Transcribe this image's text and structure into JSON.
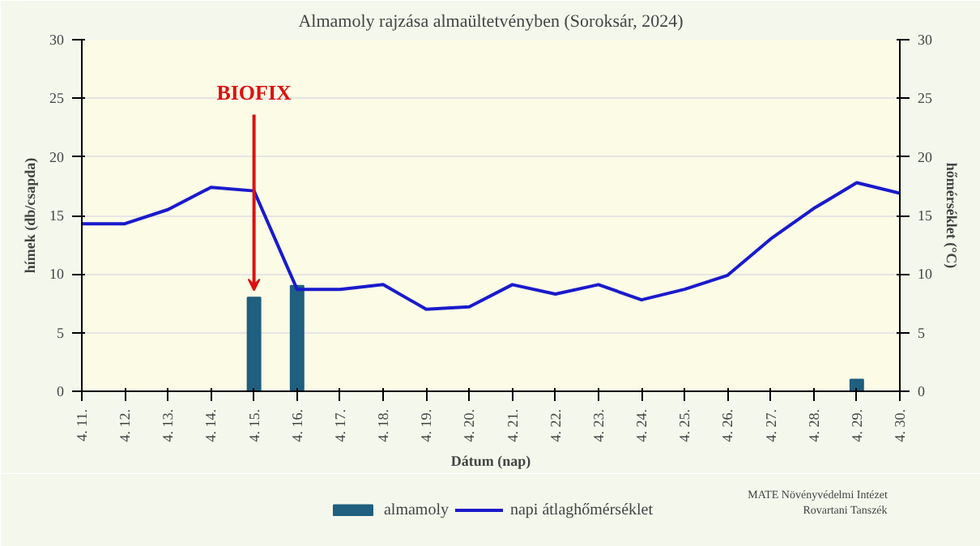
{
  "chart_data": {
    "type": "bar",
    "title": "Almamoly rajzása almaültetvényben (Soroksár, 2024)",
    "xlabel": "Dátum (nap)",
    "ylabel": "hímek (db/csapda)",
    "y2label": "hőmérséklet (°C)",
    "categories": [
      "4. 11.",
      "4. 12.",
      "4. 13.",
      "4. 14.",
      "4. 15.",
      "4. 16.",
      "4. 17.",
      "4. 18.",
      "4. 19.",
      "4. 20.",
      "4. 21.",
      "4. 22.",
      "4. 23.",
      "4. 24.",
      "4. 25.",
      "4. 26.",
      "4. 27.",
      "4. 28.",
      "4. 29.",
      "4. 30."
    ],
    "series": [
      {
        "name": "almamoly",
        "color": "#1f5f7f",
        "values": [
          0,
          0,
          0,
          0,
          8,
          9,
          0,
          0,
          0,
          0,
          0,
          0,
          0,
          0,
          0,
          0,
          0,
          0,
          1,
          0
        ]
      },
      {
        "name": "napi átlaghőmérséklet",
        "type": "line",
        "axis": "y2",
        "color": "#1a1acc",
        "values": [
          14.3,
          14.3,
          15.5,
          17.4,
          17.1,
          8.7,
          8.7,
          9.1,
          7.0,
          7.2,
          9.1,
          8.3,
          9.1,
          7.8,
          8.7,
          9.9,
          13.0,
          15.6,
          17.8,
          16.9
        ]
      }
    ],
    "ylim": [
      0,
      30
    ],
    "yticks": [
      0,
      5,
      10,
      15,
      20,
      25,
      30
    ],
    "y2lim": [
      0,
      30
    ],
    "y2ticks": [
      0,
      5,
      10,
      15,
      20,
      25,
      30
    ],
    "grid": "y",
    "legend": "bottom",
    "marker": "none",
    "line_style": "solid",
    "annotations": [
      {
        "text": "BIOFIX",
        "x": "4. 15.",
        "y": 8
      },
      "MATE Növényvédelmi Intézet\nRovartani Tanszék"
    ]
  }
}
